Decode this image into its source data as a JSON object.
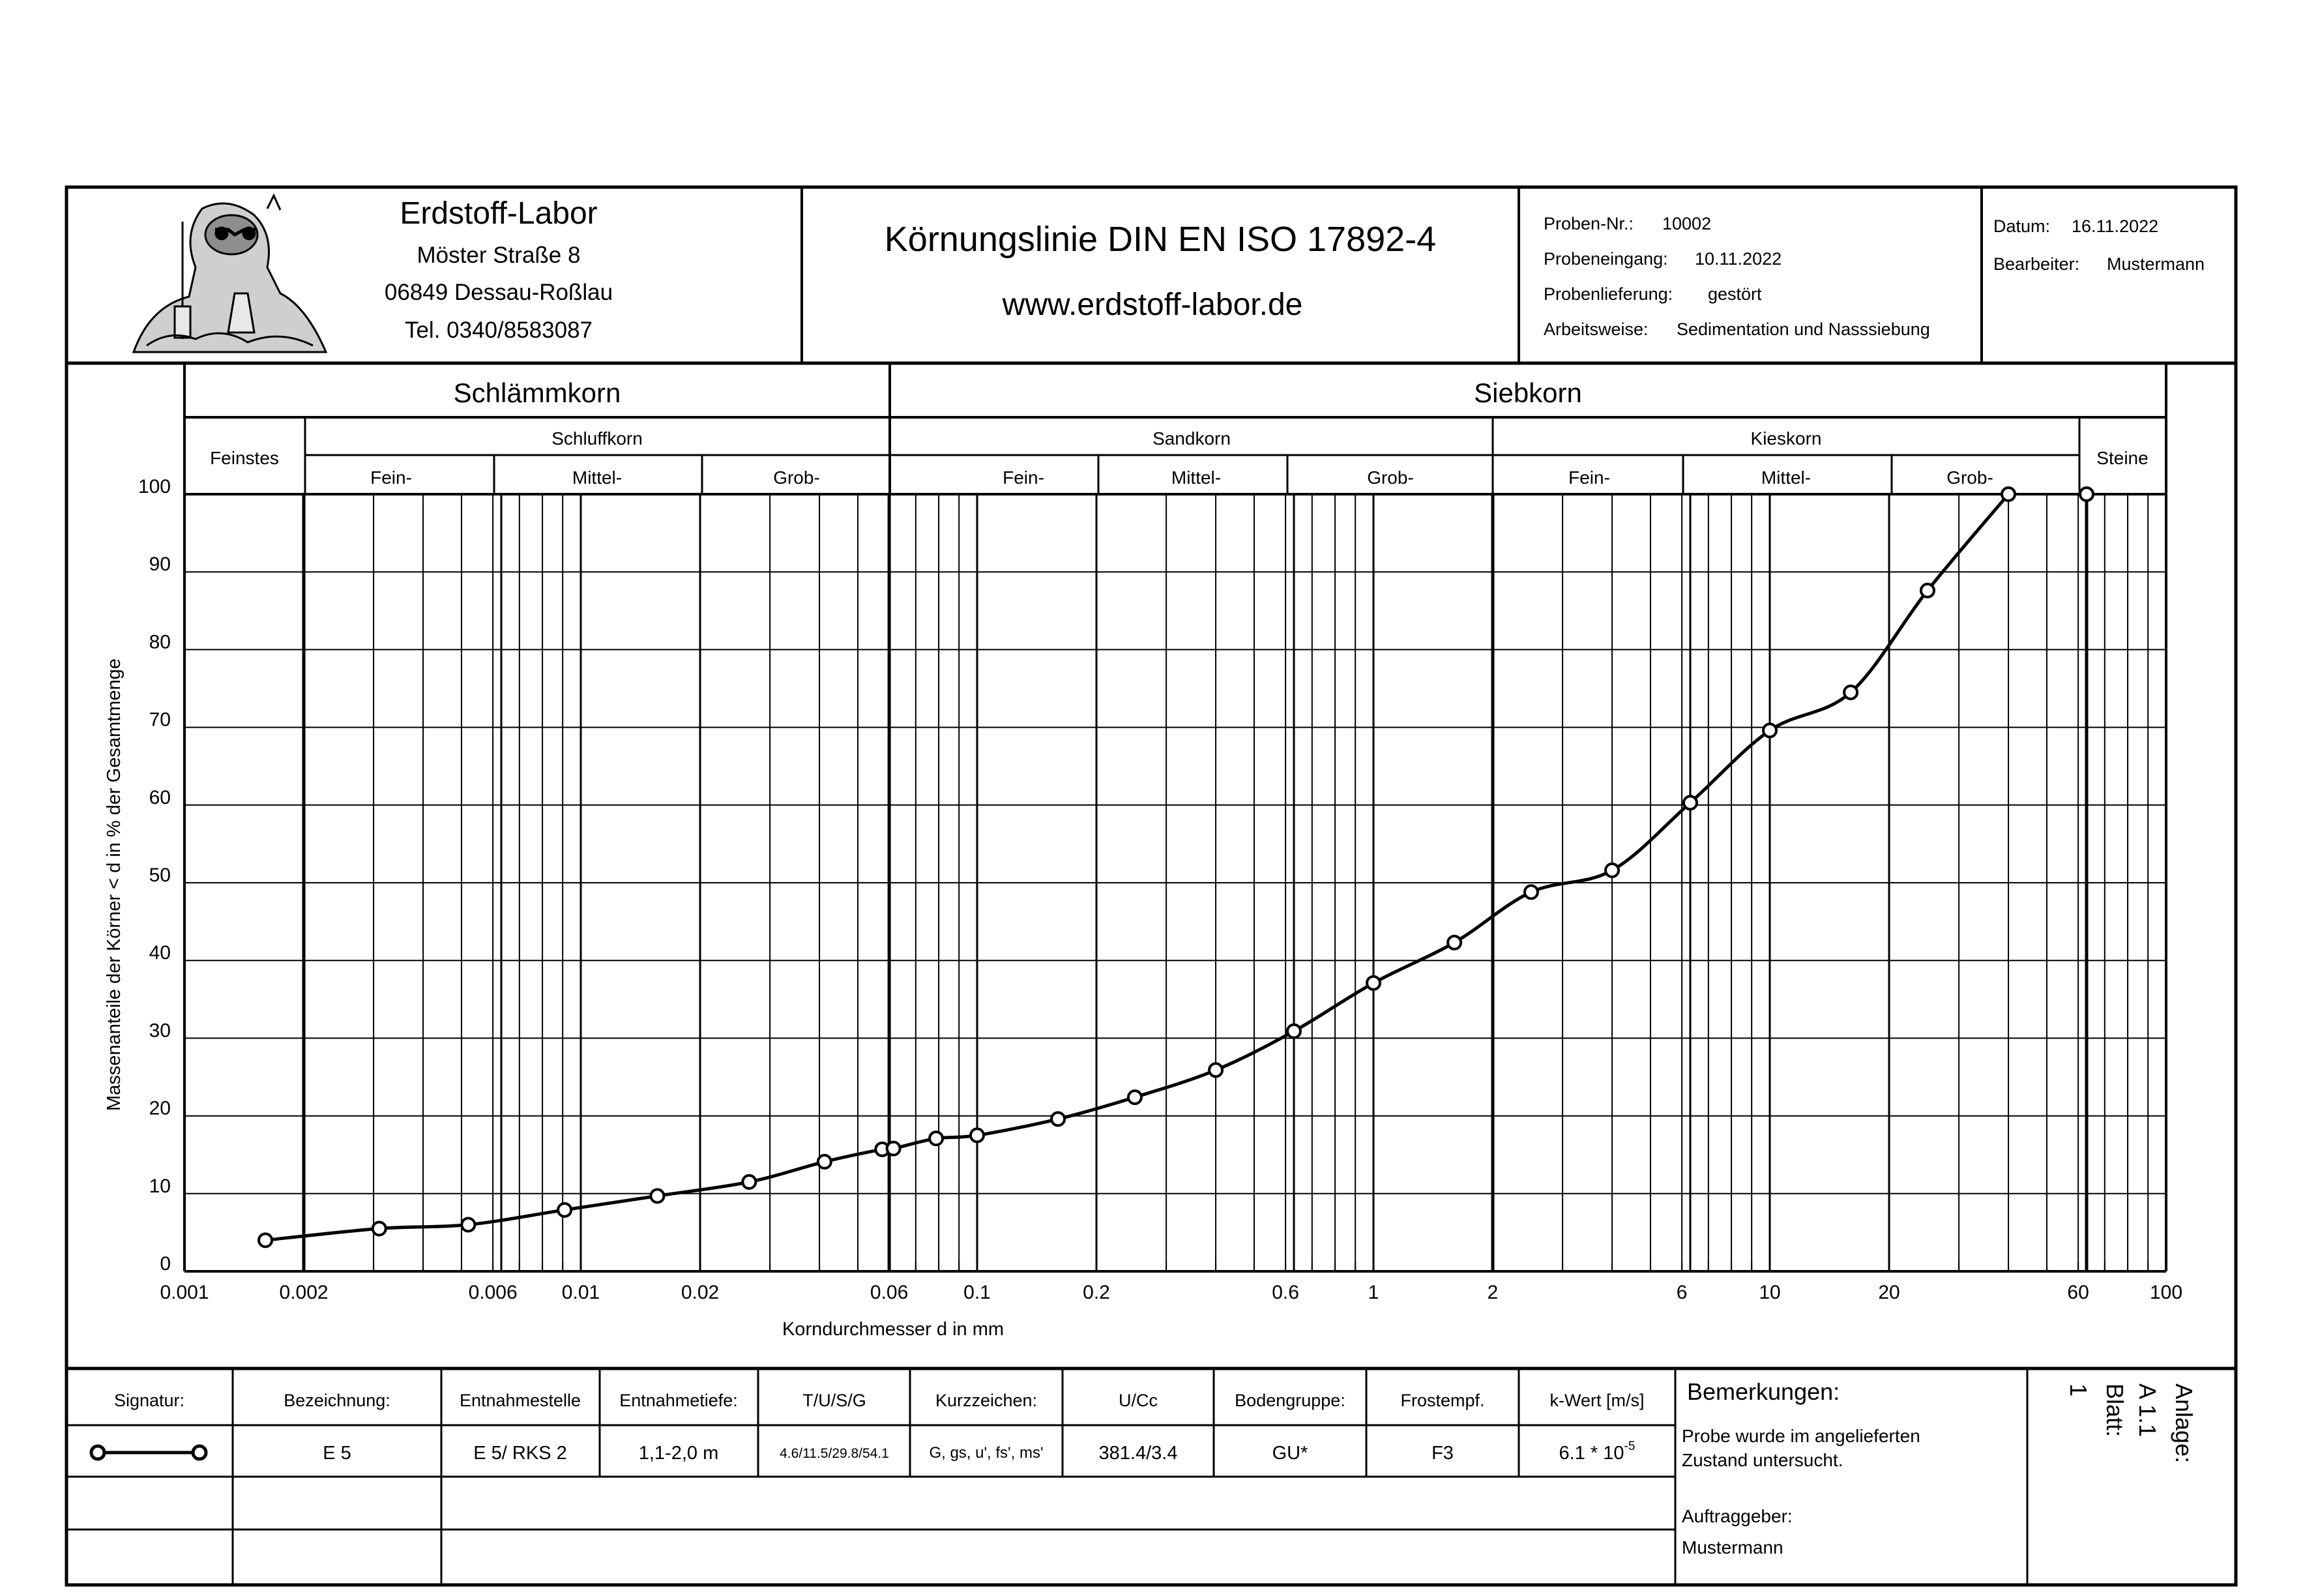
{
  "header": {
    "lab_name": "Erdstoff-Labor",
    "lab_street": "Möster Straße 8",
    "lab_city": "06849 Dessau-Roßlau",
    "lab_phone": "Tel. 0340/8583087",
    "title": "Körnungslinie DIN EN ISO 17892-4",
    "website": "www.erdstoff-labor.de",
    "proben_nr_label": "Proben-Nr.:",
    "proben_nr": "10002",
    "probeneingang_label": "Probeneingang:",
    "probeneingang": "10.11.2022",
    "probenlieferung_label": "Probenlieferung:",
    "probenlieferung": "gestört",
    "arbeitsweise_label": "Arbeitsweise:",
    "arbeitsweise": "Sedimentation und Nasssiebung",
    "datum_label": "Datum:",
    "datum": "16.11.2022",
    "bearbeiter_label": "Bearbeiter:",
    "bearbeiter": "Mustermann"
  },
  "classification": {
    "schlaemmkorn": "Schlämmkorn",
    "siebkorn": "Siebkorn",
    "feinstes": "Feinstes",
    "schluffkorn": "Schluffkorn",
    "sandkorn": "Sandkorn",
    "kieskorn": "Kieskorn",
    "steine": "Steine",
    "fein": "Fein-",
    "mittel": "Mittel-",
    "grob": "Grob-"
  },
  "chart_data": {
    "type": "line",
    "xlabel": "Korndurchmesser d in mm",
    "ylabel": "Massenanteile der Körner < d in % der Gesamtmenge",
    "xscale": "log",
    "xlim": [
      0.001,
      100
    ],
    "ylim": [
      0,
      100
    ],
    "grid": true,
    "x_tick_labels": [
      {
        "v": 0.001,
        "t": "0.001"
      },
      {
        "v": 0.002,
        "t": "0.002"
      },
      {
        "v": 0.006,
        "t": "0.006"
      },
      {
        "v": 0.01,
        "t": "0.01"
      },
      {
        "v": 0.02,
        "t": "0.02"
      },
      {
        "v": 0.06,
        "t": "0.06"
      },
      {
        "v": 0.1,
        "t": "0.1"
      },
      {
        "v": 0.2,
        "t": "0.2"
      },
      {
        "v": 0.6,
        "t": "0.6"
      },
      {
        "v": 1,
        "t": "1"
      },
      {
        "v": 2,
        "t": "2"
      },
      {
        "v": 6,
        "t": "6"
      },
      {
        "v": 10,
        "t": "10"
      },
      {
        "v": 20,
        "t": "20"
      },
      {
        "v": 60,
        "t": "60"
      },
      {
        "v": 100,
        "t": "100"
      }
    ],
    "y_ticks": [
      "0",
      "10",
      "20",
      "30",
      "40",
      "50",
      "60",
      "70",
      "80",
      "90",
      "100"
    ],
    "series": [
      {
        "points": [
          [
            0.0016,
            4.0
          ],
          [
            0.0031,
            5.5
          ],
          [
            0.0052,
            6.0
          ],
          [
            0.0091,
            7.9
          ],
          [
            0.0156,
            9.7
          ],
          [
            0.0266,
            11.5
          ],
          [
            0.0412,
            14.1
          ],
          [
            0.0576,
            15.7
          ],
          [
            0.0615,
            15.8
          ],
          [
            0.0788,
            17.1
          ],
          [
            0.1,
            17.5
          ],
          [
            0.16,
            19.6
          ],
          [
            0.25,
            22.4
          ],
          [
            0.4,
            25.9
          ],
          [
            0.63,
            30.9
          ],
          [
            1.0,
            37.1
          ],
          [
            1.6,
            42.3
          ],
          [
            2.5,
            48.8
          ],
          [
            4.0,
            51.6
          ],
          [
            6.3,
            60.3
          ],
          [
            10.0,
            69.6
          ],
          [
            16.0,
            74.5
          ],
          [
            25.0,
            87.6
          ],
          [
            40.0,
            100.0
          ],
          [
            63.0,
            100.0
          ]
        ],
        "curve_end_index": 23
      }
    ]
  },
  "table": {
    "headers": {
      "signatur": "Signatur:",
      "bezeichnung": "Bezeichnung:",
      "entnahmestelle": "Entnahmestelle",
      "entnahmetiefe": "Entnahmetiefe:",
      "tusg": "T/U/S/G",
      "kurzzeichen": "Kurzzeichen:",
      "ucc": "U/Cc",
      "bodengruppe": "Bodengruppe:",
      "frostempf": "Frostempf.",
      "kwert": "k-Wert [m/s]"
    },
    "row": {
      "bezeichnung": "E 5",
      "entnahmestelle": "E 5/ RKS 2",
      "entnahmetiefe": "1,1-2,0 m",
      "tusg": "4.6/11.5/29.8/54.1",
      "kurzzeichen": "G, gs, u', fs', ms'",
      "ucc": "381.4/3.4",
      "bodengruppe": "GU*",
      "frostempf": "F3",
      "kwert_base": "6.1 * 10",
      "kwert_exp": "-5"
    },
    "bemerkungen_label": "Bemerkungen:",
    "bemerkung_line1": "Probe wurde im angelieferten",
    "bemerkung_line2": "Zustand untersucht.",
    "auftraggeber_label": "Auftraggeber:",
    "auftraggeber": "Mustermann",
    "anlage_label": "Anlage:",
    "anlage": "A 1.1",
    "blatt_label": "Blatt:",
    "blatt": "1"
  }
}
